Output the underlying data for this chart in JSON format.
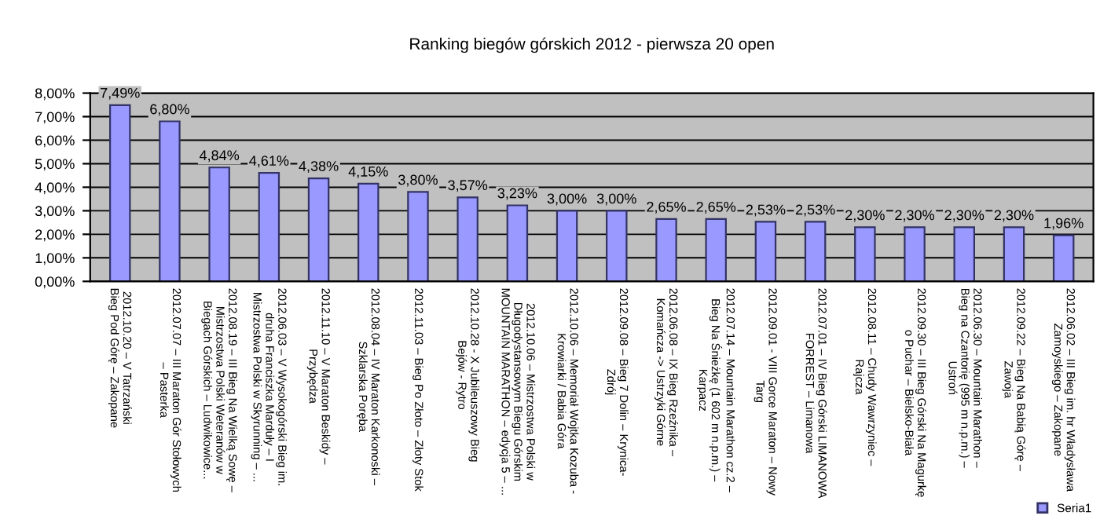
{
  "chart_data": {
    "type": "bar",
    "title": "Ranking biegów górskich 2012 - pierwsza 20 open",
    "categories": [
      "2012.10.20 – V Tatrzański\nBieg Pod Górę – Zakopane",
      "2012.07.07 – III Maraton Gór Stołowych\n– Pasterka",
      "2012.08.19 – III Bieg Na Wielką Sowę –\nMistrzostwa Polski Weteranów w\nBiegach Górskich – Ludwikowice...",
      "2012.06.03 – V Wysokogórski Bieg im.\ndruha Franciszka Marduły – I\nMistrzostwa Polski w Skyrunning – ...",
      "2012.11.10 – V Maraton Beskidy –\nPrzybędza",
      "2012.08.04 – IV Maraton Karkonoski –\nSzklarska Poręba",
      "2012.11.03 – Bieg Po Złoto – Złoty Stok",
      "2012.10.28 - X Jubileuszowy Bieg\nBejów - Rytro",
      "2012.10.06 – Mistrzostwa Polski w\nDługodystansowym Biegu Górskim\nMOUNTAIN MARATHON – edycja 5 – ...",
      "2012.10.06 – Memoriał Wojtka Kozuba -\nKrowiarki / Babia Góra",
      "2012.09.08 – Bieg 7 Dolin – Krynica-\nZdrój",
      "2012.06.08 – IX Bieg Rzeźnika –\nKomańcza -> Ustrzyki Górne",
      "2012.07.14 – Mountain Marathon cz.2 –\nBieg Na Śnieżkę (1 602 m n.p.m.) –\nKarpacz",
      "2012.09.01 - VIII Gorce Maraton – Nowy\nTarg",
      "2012.07.01 – IV Bieg Górski LIMANOWA\nFORREST – Limanowa",
      "2012.08.11 – Chudy Wawrzyniec –\nRajcza",
      "2012.09.30 – III Bieg Górski Na Magurkę\no Puchar – Bielsko-Biała",
      "2012.06.30 – Mountain Marathon –\nBieg na Czantorię (995 m n.p.m.) –\nUstroń",
      "2012.09.22 – Bieg Na Babią Górę –\nZawoja",
      "2012.06.02 – III Bieg im. hr Władysława\nZamoyskiego – Zakopane"
    ],
    "series": [
      {
        "name": "Seria1",
        "color": "#9999ff",
        "values": [
          7.49,
          6.8,
          4.84,
          4.61,
          4.38,
          4.15,
          3.8,
          3.57,
          3.23,
          3.0,
          3.0,
          2.65,
          2.65,
          2.53,
          2.53,
          2.3,
          2.3,
          2.3,
          2.3,
          1.96
        ],
        "value_labels": [
          "7,49%",
          "6,80%",
          "4,84%",
          "4,61%",
          "4,38%",
          "4,15%",
          "3,80%",
          "3,57%",
          "3,23%",
          "3,00%",
          "3,00%",
          "2,65%",
          "2,65%",
          "2,53%",
          "2,53%",
          "2,30%",
          "2,30%",
          "2,30%",
          "2,30%",
          "1,96%"
        ]
      }
    ],
    "ylim": [
      0,
      8
    ],
    "yticks": [
      {
        "value": 0,
        "label": "0,00%"
      },
      {
        "value": 1,
        "label": "1,00%"
      },
      {
        "value": 2,
        "label": "2,00%"
      },
      {
        "value": 3,
        "label": "3,00%"
      },
      {
        "value": 4,
        "label": "4,00%"
      },
      {
        "value": 5,
        "label": "5,00%"
      },
      {
        "value": 6,
        "label": "6,00%"
      },
      {
        "value": 7,
        "label": "7,00%"
      },
      {
        "value": 8,
        "label": "8,00%"
      }
    ],
    "grid": "y",
    "legend": "bottom right"
  }
}
